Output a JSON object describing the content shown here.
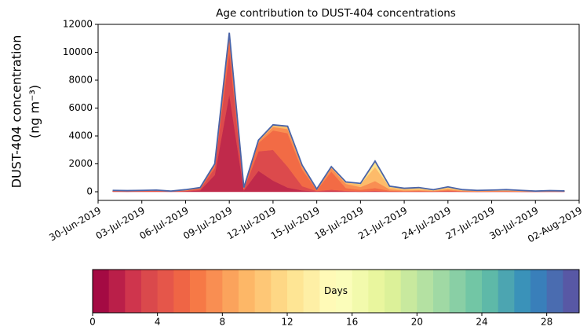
{
  "chart_data": {
    "type": "stacked-area",
    "title": "Age contribution to DUST-404 concentrations",
    "ylabel": [
      "DUST-404 concentration",
      "(ng m⁻³)"
    ],
    "x": [
      "01-Jul-2019",
      "02-Jul-2019",
      "03-Jul-2019",
      "04-Jul-2019",
      "05-Jul-2019",
      "06-Jul-2019",
      "07-Jul-2019",
      "08-Jul-2019",
      "09-Jul-2019",
      "10-Jul-2019",
      "11-Jul-2019",
      "12-Jul-2019",
      "13-Jul-2019",
      "14-Jul-2019",
      "15-Jul-2019",
      "16-Jul-2019",
      "17-Jul-2019",
      "18-Jul-2019",
      "19-Jul-2019",
      "20-Jul-2019",
      "21-Jul-2019",
      "22-Jul-2019",
      "23-Jul-2019",
      "24-Jul-2019",
      "25-Jul-2019",
      "26-Jul-2019",
      "27-Jul-2019",
      "28-Jul-2019",
      "29-Jul-2019",
      "30-Jul-2019",
      "31-Jul-2019",
      "01-Aug-2019"
    ],
    "series": [
      {
        "color": "#c02a4b",
        "values": [
          20,
          10,
          20,
          20,
          10,
          30,
          100,
          1200,
          7000,
          100,
          1500,
          800,
          300,
          100,
          20,
          50,
          20,
          10,
          20,
          10,
          10,
          10,
          10,
          20,
          10,
          5,
          10,
          10,
          5,
          5,
          10,
          10
        ]
      },
      {
        "color": "#dc4a4c",
        "values": [
          20,
          20,
          20,
          30,
          10,
          30,
          80,
          500,
          3000,
          80,
          1400,
          2200,
          1500,
          300,
          40,
          100,
          50,
          30,
          50,
          20,
          10,
          20,
          10,
          30,
          10,
          10,
          10,
          10,
          10,
          5,
          10,
          10
        ]
      },
      {
        "color": "#f26b45",
        "values": [
          20,
          20,
          20,
          30,
          10,
          30,
          60,
          200,
          1000,
          60,
          600,
          1400,
          2400,
          1200,
          60,
          1300,
          200,
          100,
          200,
          50,
          30,
          30,
          20,
          50,
          20,
          15,
          20,
          20,
          15,
          10,
          10,
          10
        ]
      },
      {
        "color": "#f98e52",
        "values": [
          20,
          10,
          20,
          20,
          10,
          30,
          30,
          60,
          250,
          30,
          120,
          250,
          300,
          200,
          40,
          250,
          300,
          200,
          500,
          100,
          50,
          60,
          30,
          80,
          30,
          20,
          20,
          30,
          20,
          10,
          20,
          10
        ]
      },
      {
        "color": "#fdbb6a",
        "values": [
          10,
          10,
          10,
          10,
          5,
          15,
          20,
          30,
          100,
          20,
          50,
          100,
          150,
          70,
          30,
          70,
          100,
          200,
          1000,
          150,
          100,
          100,
          50,
          100,
          50,
          30,
          30,
          40,
          30,
          10,
          20,
          10
        ]
      },
      {
        "color": "#fee08b",
        "values": [
          10,
          10,
          10,
          10,
          5,
          15,
          10,
          10,
          50,
          10,
          30,
          50,
          50,
          30,
          10,
          30,
          30,
          60,
          430,
          70,
          50,
          80,
          30,
          70,
          30,
          20,
          30,
          40,
          20,
          10,
          10,
          10
        ]
      }
    ],
    "outline": {
      "color": "#4a64a8",
      "values": [
        100,
        80,
        100,
        120,
        50,
        150,
        300,
        2000,
        11400,
        300,
        3700,
        4800,
        4700,
        1900,
        200,
        1800,
        700,
        600,
        2200,
        400,
        250,
        300,
        150,
        350,
        150,
        100,
        120,
        150,
        100,
        50,
        80,
        60
      ]
    },
    "xlim": [
      "30-Jun-2019",
      "02-Aug-2019"
    ],
    "xticks": [
      "30-Jun-2019",
      "03-Jul-2019",
      "06-Jul-2019",
      "09-Jul-2019",
      "12-Jul-2019",
      "15-Jul-2019",
      "18-Jul-2019",
      "21-Jul-2019",
      "24-Jul-2019",
      "27-Jul-2019",
      "30-Jul-2019",
      "02-Aug-2019"
    ],
    "ylim": [
      -620,
      12000
    ],
    "yticks": [
      0,
      2000,
      4000,
      6000,
      8000,
      10000,
      12000
    ],
    "colorbar": {
      "label": "Days",
      "lim": [
        0,
        30
      ],
      "ticks": [
        0,
        4,
        8,
        12,
        16,
        20,
        24,
        28
      ],
      "colors": [
        "#a40a43",
        "#ba1f49",
        "#cf354d",
        "#da494c",
        "#e5564a",
        "#ef6545",
        "#f67946",
        "#f98e52",
        "#fba35c",
        "#fdb767",
        "#fec776",
        "#fed785",
        "#fee594",
        "#feefa5",
        "#fffab7",
        "#fbfdba",
        "#f2faac",
        "#e9f69e",
        "#dcf199",
        "#c8e99e",
        "#b4e1a2",
        "#a0d9a4",
        "#89cfa5",
        "#72c6a5",
        "#5eb9a8",
        "#4ca5b1",
        "#3a92b9",
        "#397fba",
        "#4a6cb0",
        "#5858a5"
      ]
    }
  }
}
